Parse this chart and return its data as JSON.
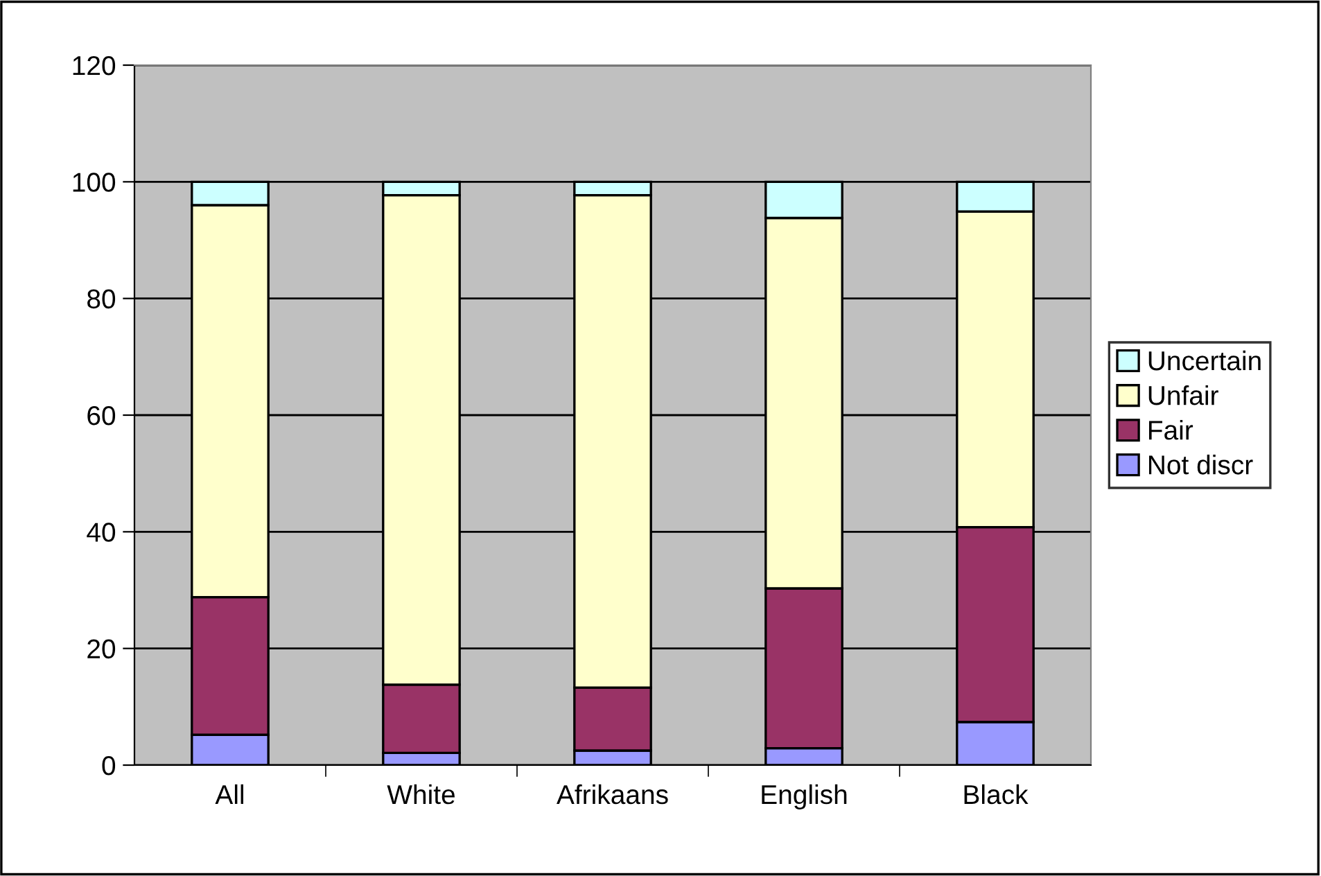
{
  "chart_data": {
    "type": "bar",
    "stacked": true,
    "categories": [
      "All",
      "White",
      "Afrikaans",
      "English",
      "Black"
    ],
    "series": [
      {
        "name": "Not discr",
        "color": "#9999ff",
        "values": [
          5.2,
          2.1,
          2.5,
          2.9,
          7.4
        ]
      },
      {
        "name": "Fair",
        "color": "#993366",
        "values": [
          23.6,
          11.7,
          10.8,
          27.4,
          33.4
        ]
      },
      {
        "name": "Unfair",
        "color": "#ffffcc",
        "values": [
          67.2,
          83.9,
          84.4,
          63.5,
          54.1
        ]
      },
      {
        "name": "Uncertain",
        "color": "#ccffff",
        "values": [
          4,
          2.3,
          2.3,
          6.2,
          5.1
        ]
      }
    ],
    "ylim": [
      0,
      120
    ],
    "yticks": [
      0,
      20,
      40,
      60,
      80,
      100,
      120
    ],
    "grid": "y",
    "legend": "right"
  }
}
